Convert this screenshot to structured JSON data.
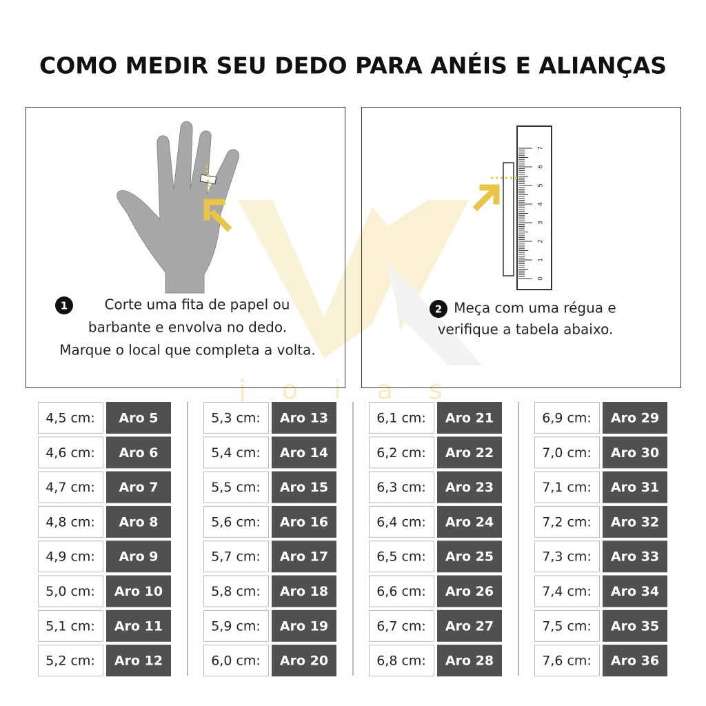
{
  "header": {
    "title": "COMO MEDIR SEU DEDO PARA ANÉIS E ALIANÇAS"
  },
  "steps": [
    {
      "number": "1",
      "lines": [
        "Corte uma fita de papel ou",
        "barbante e envolva no dedo.",
        "Marque o local que completa a volta."
      ]
    },
    {
      "number": "2",
      "lines": [
        "Meça com uma régua e",
        "verifique a tabela abaixo."
      ]
    }
  ],
  "ruler": {
    "labels": [
      "0",
      "1",
      "2",
      "3",
      "4",
      "5",
      "6",
      "7"
    ]
  },
  "watermark": "joias",
  "table": {
    "columns": [
      [
        [
          "4,5 cm:",
          "Aro 5"
        ],
        [
          "4,6 cm:",
          "Aro 6"
        ],
        [
          "4,7 cm:",
          "Aro 7"
        ],
        [
          "4,8 cm:",
          "Aro 8"
        ],
        [
          "4,9 cm:",
          "Aro 9"
        ],
        [
          "5,0 cm:",
          "Aro 10"
        ],
        [
          "5,1 cm:",
          "Aro 11"
        ],
        [
          "5,2 cm:",
          "Aro 12"
        ]
      ],
      [
        [
          "5,3 cm:",
          "Aro 13"
        ],
        [
          "5,4 cm:",
          "Aro 14"
        ],
        [
          "5,5 cm:",
          "Aro 15"
        ],
        [
          "5,6 cm:",
          "Aro 16"
        ],
        [
          "5,7 cm:",
          "Aro 17"
        ],
        [
          "5,8 cm:",
          "Aro 18"
        ],
        [
          "5,9 cm:",
          "Aro 19"
        ],
        [
          "6,0 cm:",
          "Aro 20"
        ]
      ],
      [
        [
          "6,1 cm:",
          "Aro 21"
        ],
        [
          "6,2 cm:",
          "Aro 22"
        ],
        [
          "6,3 cm:",
          "Aro 23"
        ],
        [
          "6,4 cm:",
          "Aro 24"
        ],
        [
          "6,5 cm:",
          "Aro 25"
        ],
        [
          "6,6 cm:",
          "Aro 26"
        ],
        [
          "6,7 cm:",
          "Aro 27"
        ],
        [
          "6,8 cm:",
          "Aro 28"
        ]
      ],
      [
        [
          "6,9 cm:",
          "Aro 29"
        ],
        [
          "7,0 cm:",
          "Aro 30"
        ],
        [
          "7,1 cm:",
          "Aro 31"
        ],
        [
          "7,2 cm:",
          "Aro 32"
        ],
        [
          "7,3 cm:",
          "Aro 33"
        ],
        [
          "7,4 cm:",
          "Aro 34"
        ],
        [
          "7,5 cm:",
          "Aro 35"
        ],
        [
          "7,6 cm:",
          "Aro 36"
        ]
      ]
    ]
  }
}
